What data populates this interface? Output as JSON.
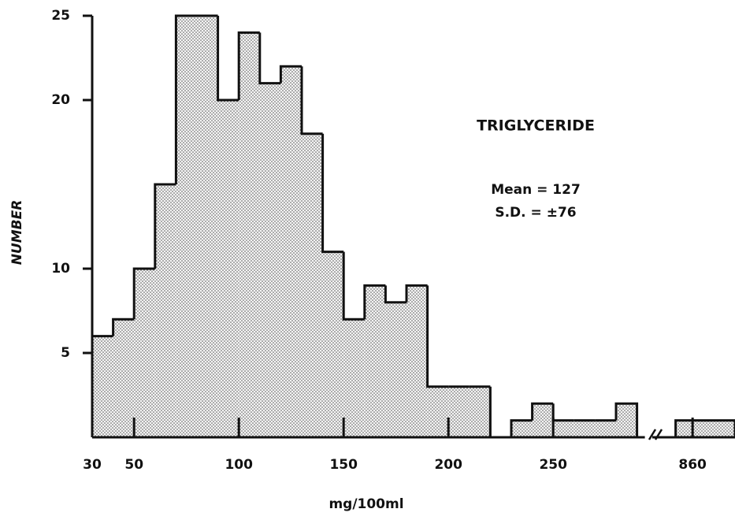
{
  "chart_data": [
    {
      "type": "histogram",
      "title": "TRIGLYCERIDE",
      "annotations": [
        "Mean = 127",
        "S.D. = ±76"
      ],
      "x_label": "mg/100ml",
      "y_label": "NUMBER",
      "bins": [
        30,
        40,
        50,
        60,
        70,
        80,
        90,
        100,
        110,
        120,
        130,
        140,
        150,
        160,
        170,
        180,
        190,
        200,
        210,
        220,
        230,
        240,
        250,
        260,
        270,
        280,
        290
      ],
      "counts": [
        6,
        7,
        10,
        15,
        25,
        25,
        20,
        24,
        21,
        22,
        18,
        11,
        7,
        9,
        8,
        9,
        3,
        3,
        3,
        0,
        1,
        2,
        1,
        1,
        1,
        2
      ],
      "xlim": [
        30,
        290
      ],
      "ylim": [
        0,
        25
      ],
      "xticks": [
        30,
        50,
        100,
        150,
        200,
        250
      ],
      "yticks": [
        5,
        10,
        20,
        25
      ]
    },
    {
      "type": "histogram",
      "bins": [
        852,
        880
      ],
      "counts": [
        1
      ],
      "xlim": [
        841,
        880
      ],
      "ylim": [
        0,
        25
      ],
      "xticks": [
        860
      ]
    }
  ]
}
